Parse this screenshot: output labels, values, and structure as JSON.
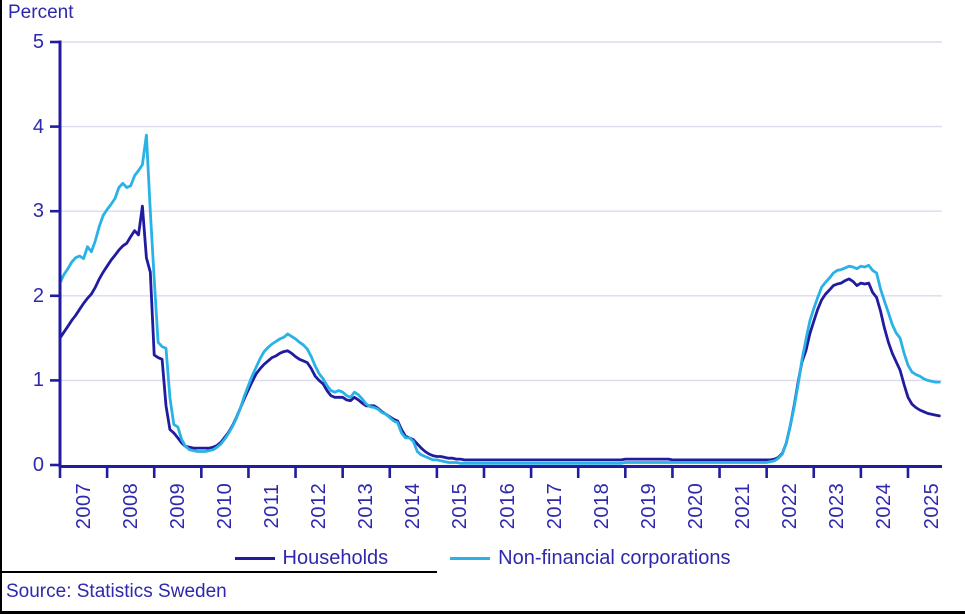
{
  "chart": {
    "unit": "Percent",
    "source": "Source: Statistics Sweden"
  },
  "colors": {
    "households_line": "#211C9F",
    "nfc_line": "#29B2E5",
    "axis": "#211C9F",
    "grid": "#DBDAEE",
    "text": "#2E29AC",
    "frame": "#000000"
  },
  "chart_data": {
    "type": "line",
    "title": "Percent",
    "xlabel": "",
    "ylabel": "Percent",
    "ylim": [
      0,
      5
    ],
    "yticks": [
      0,
      1,
      2,
      3,
      4,
      5
    ],
    "grid": "horizontal",
    "legend_position": "bottom",
    "x_unit": "month",
    "x_start": "2007-01",
    "x_end": "2025-09",
    "year_labels": [
      "2007",
      "2008",
      "2009",
      "2010",
      "2011",
      "2012",
      "2013",
      "2014",
      "2015",
      "2016",
      "2017",
      "2018",
      "2019",
      "2020",
      "2021",
      "2022",
      "2023",
      "2024",
      "2025"
    ],
    "series": [
      {
        "name": "Households",
        "color": "#211C9F",
        "values": [
          1.5,
          1.57,
          1.64,
          1.71,
          1.77,
          1.84,
          1.91,
          1.97,
          2.02,
          2.1,
          2.2,
          2.28,
          2.35,
          2.42,
          2.48,
          2.54,
          2.59,
          2.62,
          2.7,
          2.77,
          2.72,
          3.06,
          2.45,
          2.28,
          1.3,
          1.27,
          1.25,
          0.7,
          0.42,
          0.38,
          0.32,
          0.26,
          0.22,
          0.21,
          0.2,
          0.2,
          0.2,
          0.2,
          0.2,
          0.21,
          0.23,
          0.27,
          0.33,
          0.39,
          0.47,
          0.57,
          0.68,
          0.79,
          0.89,
          0.99,
          1.08,
          1.14,
          1.19,
          1.23,
          1.27,
          1.29,
          1.32,
          1.34,
          1.35,
          1.32,
          1.28,
          1.25,
          1.23,
          1.21,
          1.14,
          1.05,
          1.0,
          0.96,
          0.88,
          0.82,
          0.8,
          0.8,
          0.8,
          0.77,
          0.76,
          0.8,
          0.77,
          0.73,
          0.7,
          0.7,
          0.7,
          0.67,
          0.63,
          0.6,
          0.57,
          0.54,
          0.52,
          0.42,
          0.34,
          0.32,
          0.3,
          0.25,
          0.2,
          0.16,
          0.13,
          0.11,
          0.1,
          0.1,
          0.09,
          0.08,
          0.08,
          0.07,
          0.07,
          0.06,
          0.06,
          0.06,
          0.06,
          0.06,
          0.06,
          0.06,
          0.06,
          0.06,
          0.06,
          0.06,
          0.06,
          0.06,
          0.06,
          0.06,
          0.06,
          0.06,
          0.06,
          0.06,
          0.06,
          0.06,
          0.06,
          0.06,
          0.06,
          0.06,
          0.06,
          0.06,
          0.06,
          0.06,
          0.06,
          0.06,
          0.06,
          0.06,
          0.06,
          0.06,
          0.06,
          0.06,
          0.06,
          0.06,
          0.06,
          0.06,
          0.07,
          0.07,
          0.07,
          0.07,
          0.07,
          0.07,
          0.07,
          0.07,
          0.07,
          0.07,
          0.07,
          0.07,
          0.06,
          0.06,
          0.06,
          0.06,
          0.06,
          0.06,
          0.06,
          0.06,
          0.06,
          0.06,
          0.06,
          0.06,
          0.06,
          0.06,
          0.06,
          0.06,
          0.06,
          0.06,
          0.06,
          0.06,
          0.06,
          0.06,
          0.06,
          0.06,
          0.06,
          0.06,
          0.07,
          0.09,
          0.14,
          0.26,
          0.46,
          0.7,
          0.98,
          1.22,
          1.35,
          1.55,
          1.7,
          1.84,
          1.95,
          2.02,
          2.07,
          2.12,
          2.14,
          2.15,
          2.18,
          2.2,
          2.17,
          2.12,
          2.15,
          2.14,
          2.15,
          2.04,
          1.98,
          1.82,
          1.62,
          1.45,
          1.32,
          1.22,
          1.12,
          0.95,
          0.8,
          0.72,
          0.68,
          0.65,
          0.63,
          0.61,
          0.6,
          0.59,
          0.58
        ]
      },
      {
        "name": "Non-financial corporations",
        "color": "#29B2E5",
        "values": [
          2.15,
          2.25,
          2.32,
          2.4,
          2.45,
          2.47,
          2.44,
          2.58,
          2.52,
          2.65,
          2.82,
          2.95,
          3.02,
          3.08,
          3.15,
          3.28,
          3.33,
          3.28,
          3.3,
          3.42,
          3.48,
          3.55,
          3.9,
          3.0,
          2.2,
          1.45,
          1.4,
          1.38,
          0.8,
          0.48,
          0.45,
          0.3,
          0.22,
          0.18,
          0.17,
          0.16,
          0.16,
          0.16,
          0.17,
          0.18,
          0.21,
          0.25,
          0.31,
          0.38,
          0.46,
          0.56,
          0.68,
          0.82,
          0.94,
          1.06,
          1.16,
          1.26,
          1.34,
          1.39,
          1.43,
          1.46,
          1.49,
          1.51,
          1.55,
          1.52,
          1.49,
          1.45,
          1.42,
          1.37,
          1.28,
          1.17,
          1.08,
          1.02,
          0.94,
          0.88,
          0.86,
          0.88,
          0.86,
          0.82,
          0.8,
          0.86,
          0.83,
          0.78,
          0.72,
          0.69,
          0.68,
          0.66,
          0.62,
          0.6,
          0.56,
          0.52,
          0.5,
          0.38,
          0.32,
          0.32,
          0.28,
          0.16,
          0.12,
          0.1,
          0.08,
          0.06,
          0.06,
          0.05,
          0.04,
          0.03,
          0.03,
          0.03,
          0.02,
          0.02,
          0.02,
          0.02,
          0.02,
          0.02,
          0.02,
          0.02,
          0.02,
          0.02,
          0.02,
          0.02,
          0.02,
          0.02,
          0.02,
          0.02,
          0.02,
          0.02,
          0.02,
          0.02,
          0.02,
          0.02,
          0.02,
          0.02,
          0.02,
          0.02,
          0.02,
          0.02,
          0.02,
          0.02,
          0.02,
          0.02,
          0.02,
          0.02,
          0.02,
          0.02,
          0.02,
          0.02,
          0.02,
          0.02,
          0.02,
          0.02,
          0.03,
          0.03,
          0.03,
          0.03,
          0.03,
          0.03,
          0.03,
          0.03,
          0.03,
          0.03,
          0.03,
          0.03,
          0.03,
          0.03,
          0.03,
          0.03,
          0.03,
          0.03,
          0.03,
          0.03,
          0.03,
          0.03,
          0.03,
          0.03,
          0.03,
          0.03,
          0.03,
          0.03,
          0.03,
          0.03,
          0.03,
          0.03,
          0.03,
          0.03,
          0.03,
          0.03,
          0.03,
          0.04,
          0.05,
          0.08,
          0.13,
          0.26,
          0.46,
          0.68,
          0.95,
          1.25,
          1.48,
          1.7,
          1.85,
          1.98,
          2.1,
          2.16,
          2.21,
          2.27,
          2.3,
          2.31,
          2.33,
          2.35,
          2.34,
          2.32,
          2.35,
          2.34,
          2.36,
          2.3,
          2.27,
          2.08,
          1.94,
          1.8,
          1.66,
          1.56,
          1.5,
          1.32,
          1.18,
          1.1,
          1.07,
          1.05,
          1.02,
          1.0,
          0.99,
          0.98,
          0.98
        ]
      }
    ]
  }
}
